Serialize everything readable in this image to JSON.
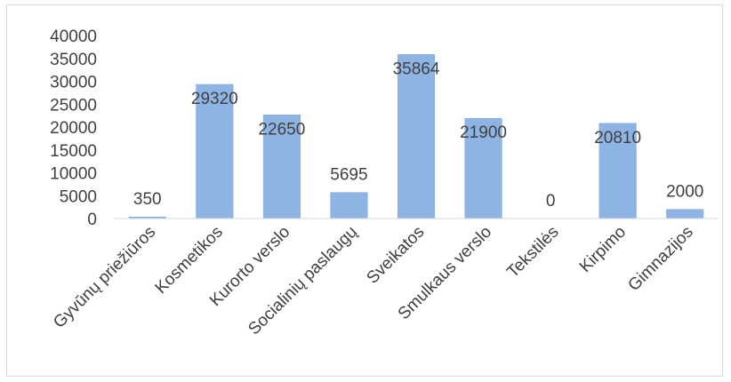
{
  "chart_data": {
    "type": "bar",
    "title": "",
    "xlabel": "",
    "ylabel": "",
    "categories": [
      "Gyvūnų priežiūros",
      "Kosmetikos",
      "Kurorto verslo",
      "Socialinių paslaugų",
      "Sveikatos",
      "Smulkaus verslo",
      "Tekstilės",
      "Kirpimo",
      "Gimnazijos"
    ],
    "values": [
      350,
      29320,
      22650,
      5695,
      35864,
      21900,
      0,
      20810,
      2000
    ],
    "data_labels": [
      "350",
      "29320",
      "22650",
      "5695",
      "35864",
      "21900",
      "0",
      "20810",
      "2000"
    ],
    "yticks": [
      "0",
      "5000",
      "10000",
      "15000",
      "20000",
      "25000",
      "30000",
      "35000",
      "40000"
    ],
    "ylim": [
      0,
      40000
    ],
    "grid": false,
    "legend": "none",
    "colors": {
      "bar": "#8db4e2",
      "bar_edge": "#7aa6db",
      "axis": "#d9d9d9",
      "text": "#404040"
    }
  }
}
